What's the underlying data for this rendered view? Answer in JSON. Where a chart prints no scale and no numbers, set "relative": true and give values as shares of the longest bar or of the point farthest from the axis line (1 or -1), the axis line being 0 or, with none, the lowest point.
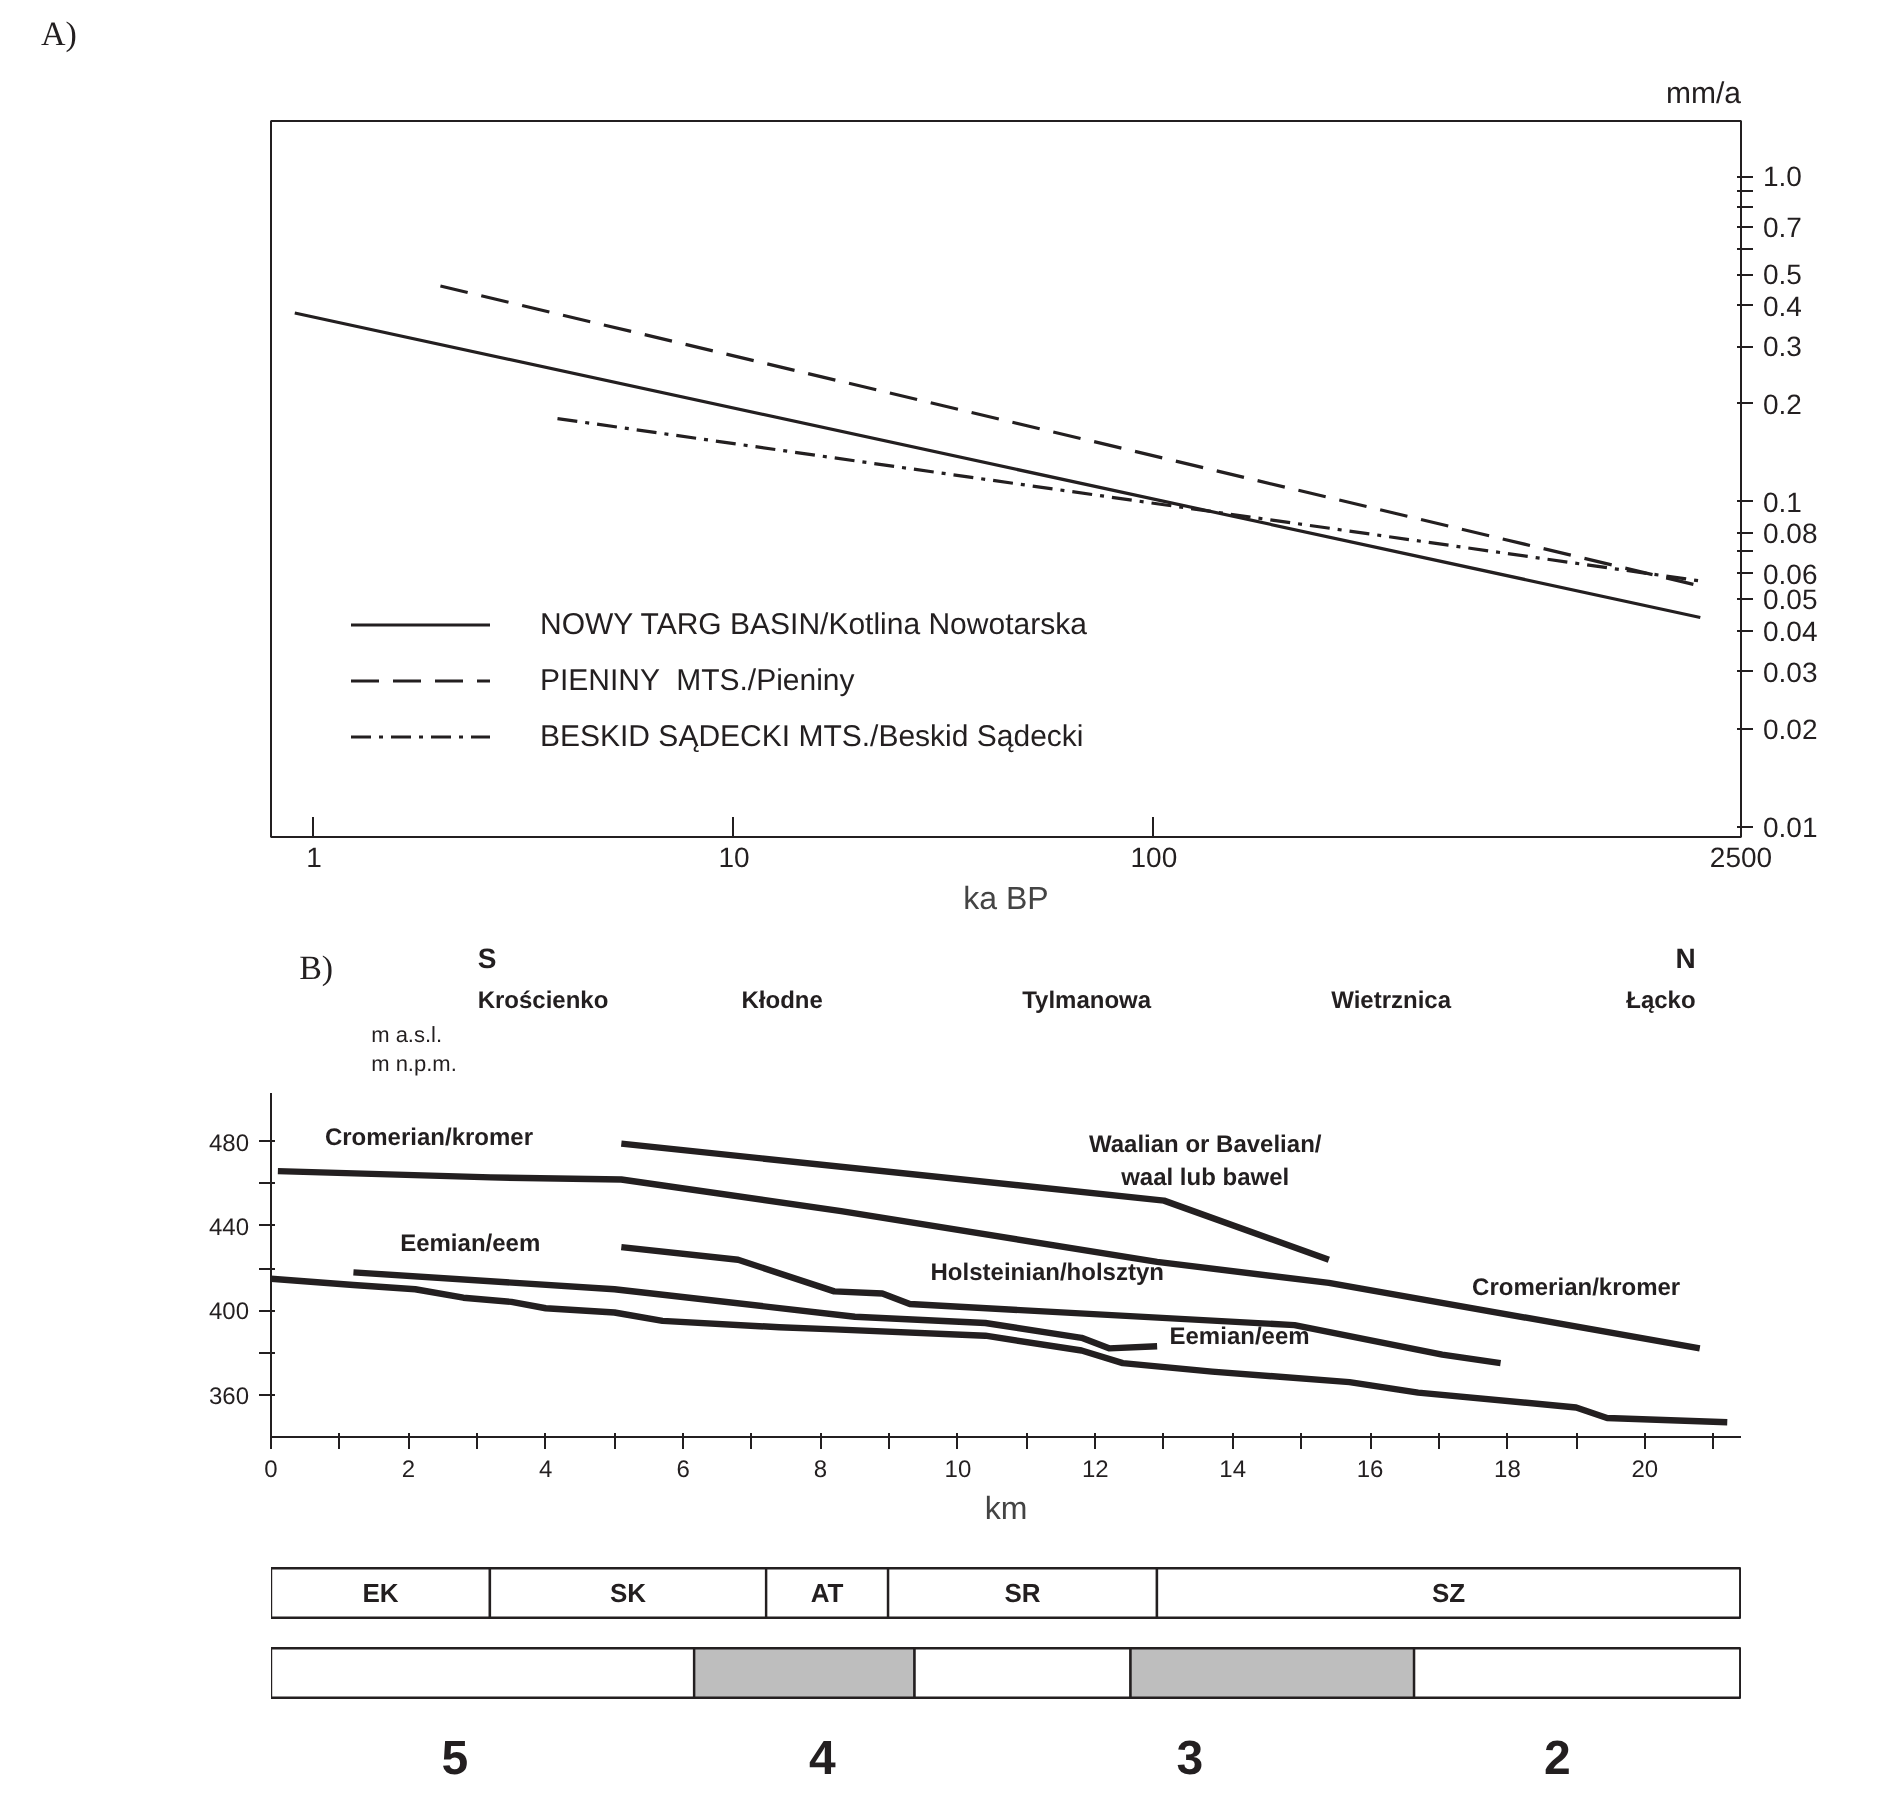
{
  "chart_data": [
    {
      "type": "line",
      "title": "A)",
      "xlabel": "ka BP",
      "ylabel": "mm/a",
      "log": "xy",
      "grid": false,
      "legend": "bottom left",
      "xlim": [
        0.79,
        2500
      ],
      "xticks": [
        1,
        10,
        100,
        2500
      ],
      "ylim": [
        0.0093,
        1.48
      ],
      "yticks": [
        0.01,
        0.02,
        0.03,
        0.04,
        0.05,
        0.06,
        {
          "value": 0.07,
          "label": null
        },
        0.08,
        0.1,
        0.2,
        0.3,
        0.4,
        0.5,
        {
          "value": 0.6,
          "label": null
        },
        0.7,
        {
          "value": 0.8,
          "label": null
        },
        {
          "value": 0.9,
          "label": null
        },
        {
          "value": 1,
          "label": "1.0"
        }
      ],
      "series": [
        {
          "name": "NOWY TARG BASIN/Kotlina Nowotarska",
          "color": "#231f20",
          "line_style": "solid",
          "x": [
            0.9,
            2000
          ],
          "values": [
            0.38,
            0.044
          ]
        },
        {
          "name": "PIENINY  MTS./Pieniny",
          "color": "#231f20",
          "line_style": "dashed",
          "x": [
            2,
            2000
          ],
          "values": [
            0.46,
            0.055
          ]
        },
        {
          "name": "BESKID SĄDECKI MTS./Beskid Sądecki",
          "color": "#231f20",
          "line_style": "dashdot",
          "x": [
            3.8,
            2000
          ],
          "values": [
            0.18,
            0.057
          ]
        }
      ]
    },
    {
      "type": "line",
      "title": "B)",
      "xlabel": "km",
      "ylabel": "m a.s.l.\nm n.p.m.",
      "grid": false,
      "legend": false,
      "xlim": [
        0,
        21.4
      ],
      "xticks": [
        0,
        {
          "value": 1,
          "label": null
        },
        2,
        {
          "value": 3,
          "label": null
        },
        4,
        {
          "value": 5,
          "label": null
        },
        6,
        {
          "value": 7,
          "label": null
        },
        8,
        {
          "value": 9,
          "label": null
        },
        10,
        {
          "value": 11,
          "label": null
        },
        12,
        {
          "value": 13,
          "label": null
        },
        14,
        {
          "value": 15,
          "label": null
        },
        16,
        {
          "value": 17,
          "label": null
        },
        18,
        {
          "value": 19,
          "label": null
        },
        20,
        {
          "value": 21,
          "label": null
        }
      ],
      "ylim": [
        340,
        503
      ],
      "yticks": [
        360,
        {
          "value": 380,
          "label": null
        },
        400,
        {
          "value": 420,
          "label": null
        },
        440,
        {
          "value": 460,
          "label": null
        },
        480
      ],
      "series": [
        {
          "color": "#231f20",
          "x": [
            0.1,
            3.2,
            5.1,
            8.3,
            12.9,
            15.4,
            20.8
          ],
          "values": [
            466,
            463,
            462,
            447,
            423,
            413,
            382
          ]
        },
        {
          "color": "#231f20",
          "x": [
            5.1,
            13.0,
            15.4
          ],
          "values": [
            479,
            452,
            424
          ]
        },
        {
          "color": "#231f20",
          "x": [
            5.1,
            6.8,
            8.2,
            8.9,
            9.3,
            14.9,
            17.05,
            17.9
          ],
          "values": [
            430,
            424,
            409,
            408,
            403,
            393,
            379,
            375
          ]
        },
        {
          "color": "#231f20",
          "x": [
            1.2,
            5.0,
            8.5,
            10.4,
            11.8,
            12.2,
            12.9
          ],
          "values": [
            418,
            410,
            397,
            394,
            387,
            382,
            383
          ]
        },
        {
          "color": "#231f20",
          "x": [
            0,
            1.2,
            2.1,
            2.8,
            3.5,
            4.0,
            5.0,
            5.7,
            7.4,
            8.2,
            10.4,
            11.8,
            12.4,
            13.7,
            15.7,
            16.7,
            19.0,
            19.45,
            21.2
          ],
          "values": [
            415,
            412,
            410,
            406,
            404,
            401,
            399,
            395,
            392,
            391,
            388,
            381,
            375,
            371,
            366,
            361,
            354,
            349,
            347
          ]
        }
      ],
      "annotations": [
        "S",
        "N",
        "Krościenko",
        "Kłodne",
        "Tylmanowa",
        "Wietrznica",
        "Łącko",
        {
          "text": "Cromerian/kromer",
          "x": 2.3,
          "y": 464
        },
        {
          "text": "Waalian or Bavelian/\nwaal lub bawel",
          "x": 13.6,
          "y": 445
        },
        {
          "text": "Eemian/eem",
          "x": 2.9,
          "y": 414
        },
        {
          "text": "Holsteinian/holsztyn",
          "x": 11.3,
          "y": 400
        },
        {
          "text": "Cromerian/kromer",
          "x": 19.0,
          "y": 393
        },
        {
          "text": "Eemian/eem",
          "x": 14.1,
          "y": 370
        }
      ]
    },
    {
      "type": "bar",
      "orientation": "horizontal",
      "stacked": true,
      "relative": true,
      "tick_labels": false,
      "grid": false,
      "legend": false,
      "categories": [
        null,
        null
      ],
      "annotations": [
        "5",
        "4",
        "3",
        "2"
      ],
      "series": [
        {
          "name": "EK",
          "colors": [
            "#ffffff",
            "#ffffff"
          ],
          "values": [
            0.149,
            0.288
          ]
        },
        {
          "name": "SK",
          "colors": [
            "#ffffff",
            "#bebebe"
          ],
          "values": [
            0.188,
            0.15
          ]
        },
        {
          "name": "AT",
          "colors": [
            "#ffffff",
            "#ffffff"
          ],
          "values": [
            0.083,
            0.147
          ]
        },
        {
          "name": "SR",
          "colors": [
            "#ffffff",
            "#bebebe"
          ],
          "values": [
            0.183,
            0.193
          ]
        },
        {
          "name": "SZ",
          "colors": [
            "#ffffff",
            "#ffffff"
          ],
          "values": [
            0.397,
            0.222
          ]
        }
      ]
    }
  ]
}
